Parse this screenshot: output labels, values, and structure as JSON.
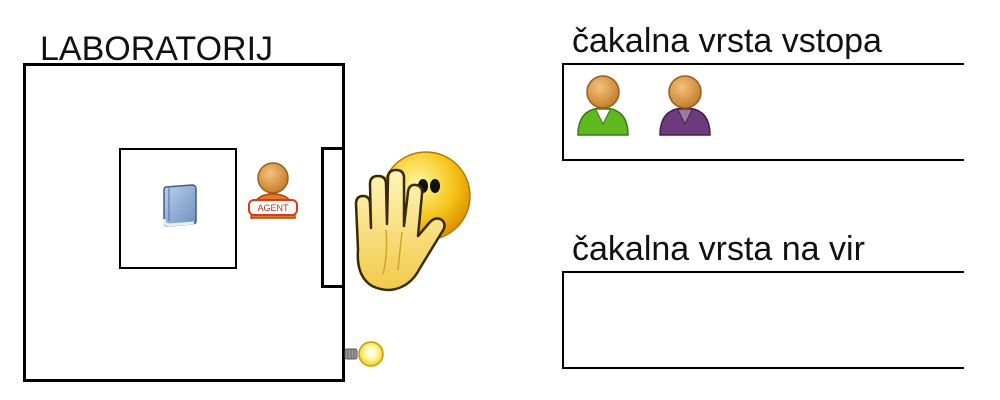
{
  "lab": {
    "title": "LABORATORIJ"
  },
  "agent": {
    "badge_text": "AGENT"
  },
  "queues": {
    "entry": {
      "title": "čakalna vrsta vstopa",
      "people": [
        {
          "shirt_color": "#5fb81f"
        },
        {
          "shirt_color": "#6e3a7e"
        }
      ]
    },
    "resource": {
      "title": "čakalna vrsta na vir"
    }
  },
  "icons": [
    "book-icon",
    "agent-icon",
    "stop-hand-icon",
    "lightbulb-icon",
    "person-icon"
  ]
}
